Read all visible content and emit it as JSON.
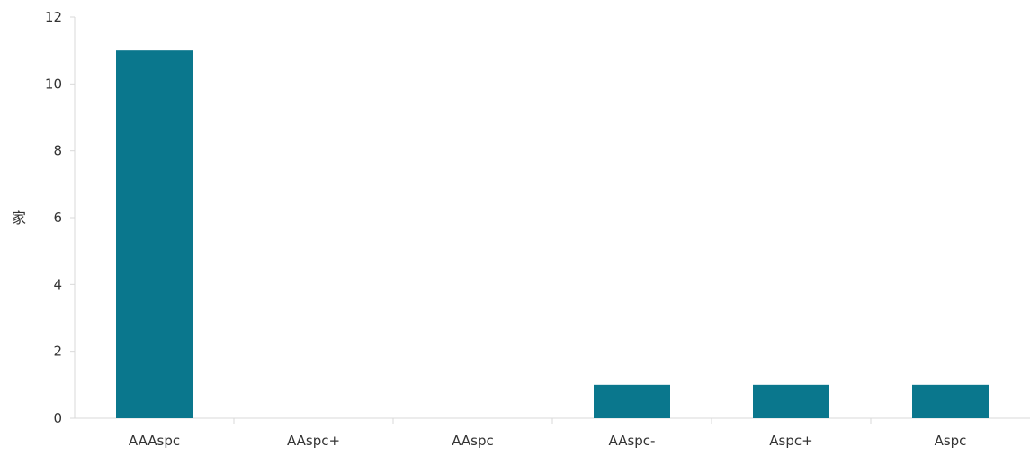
{
  "chart_data": {
    "type": "bar",
    "categories": [
      "AAAspc",
      "AAspc+",
      "AAspc",
      "AAspc-",
      "Aspc+",
      "Aspc"
    ],
    "values": [
      11,
      0,
      0,
      1,
      1,
      1
    ],
    "title": "",
    "xlabel": "",
    "ylabel": "家",
    "ylim": [
      0,
      12
    ],
    "yticks": [
      0,
      2,
      4,
      6,
      8,
      10,
      12
    ],
    "grid": false,
    "legend": "none",
    "bar_color": "#0a778d",
    "axis_color": "#d9d9d9"
  }
}
